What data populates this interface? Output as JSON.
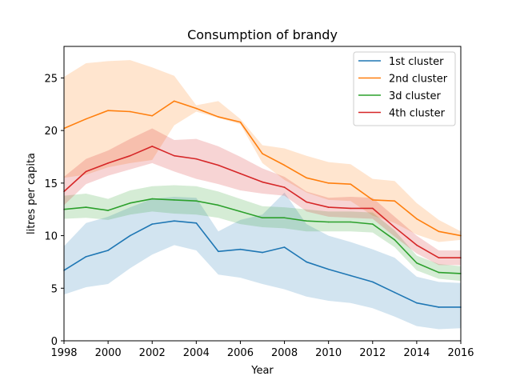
{
  "chart_data": {
    "type": "line",
    "title": "Consumption of brandy",
    "xlabel": "Year",
    "ylabel": "litres per capita",
    "xlim": [
      1998,
      2016
    ],
    "ylim": [
      0,
      28
    ],
    "x_ticks": [
      1998,
      2000,
      2002,
      2004,
      2006,
      2008,
      2010,
      2012,
      2014,
      2016
    ],
    "y_ticks": [
      0,
      5,
      10,
      15,
      20,
      25
    ],
    "legend_position": "top-right",
    "grid": false,
    "x": [
      1998,
      1999,
      2000,
      2001,
      2002,
      2003,
      2004,
      2005,
      2006,
      2007,
      2008,
      2009,
      2010,
      2011,
      2012,
      2013,
      2014,
      2015,
      2016
    ],
    "series": [
      {
        "name": "1st cluster",
        "color": "#1f77b4",
        "values": [
          6.7,
          8.0,
          8.6,
          10.0,
          11.1,
          11.4,
          11.2,
          8.5,
          8.7,
          8.4,
          8.9,
          7.5,
          6.8,
          6.2,
          5.6,
          4.6,
          3.6,
          3.2,
          3.2
        ],
        "lower": [
          4.4,
          5.1,
          5.4,
          6.9,
          8.2,
          9.1,
          8.6,
          6.3,
          6.0,
          5.4,
          4.9,
          4.2,
          3.8,
          3.6,
          3.1,
          2.3,
          1.4,
          1.1,
          1.2
        ],
        "upper": [
          9.0,
          11.2,
          11.8,
          12.7,
          13.5,
          13.7,
          13.6,
          10.4,
          11.5,
          12.0,
          14.1,
          11.1,
          10.0,
          9.4,
          8.7,
          7.9,
          6.1,
          5.6,
          5.5
        ]
      },
      {
        "name": "2nd cluster",
        "color": "#ff7f0e",
        "values": [
          20.2,
          21.1,
          21.9,
          21.8,
          21.4,
          22.8,
          22.1,
          21.3,
          20.8,
          17.8,
          16.7,
          15.5,
          15.0,
          14.9,
          13.4,
          13.3,
          11.6,
          10.4,
          10.0
        ],
        "lower": [
          15.5,
          15.8,
          16.5,
          16.9,
          17.2,
          20.5,
          21.8,
          21.2,
          20.6,
          16.9,
          15.3,
          14.1,
          13.4,
          13.3,
          11.9,
          11.2,
          10.1,
          9.4,
          9.6
        ],
        "upper": [
          25.1,
          26.4,
          26.6,
          26.7,
          26.0,
          25.2,
          22.4,
          22.8,
          21.1,
          18.6,
          18.3,
          17.6,
          17.0,
          16.8,
          15.4,
          15.2,
          13.1,
          11.5,
          10.4
        ]
      },
      {
        "name": "3d cluster",
        "color": "#2ca02c",
        "values": [
          12.5,
          12.7,
          12.4,
          13.1,
          13.5,
          13.4,
          13.3,
          12.9,
          12.3,
          11.7,
          11.7,
          11.4,
          11.3,
          11.3,
          11.1,
          9.6,
          7.4,
          6.5,
          6.4
        ],
        "lower": [
          11.6,
          11.7,
          11.5,
          12.0,
          12.3,
          12.1,
          12.0,
          11.7,
          11.1,
          10.8,
          10.7,
          10.4,
          10.4,
          10.4,
          10.3,
          8.9,
          6.7,
          5.9,
          5.7
        ],
        "upper": [
          13.8,
          14.0,
          13.5,
          14.3,
          14.7,
          14.8,
          14.7,
          14.2,
          13.5,
          12.8,
          12.7,
          12.5,
          12.3,
          12.3,
          12.2,
          10.5,
          8.1,
          7.3,
          7.1
        ]
      },
      {
        "name": "4th cluster",
        "color": "#d62728",
        "values": [
          14.2,
          16.1,
          16.9,
          17.6,
          18.5,
          17.6,
          17.3,
          16.7,
          15.9,
          15.1,
          14.6,
          13.2,
          12.7,
          12.6,
          12.6,
          10.8,
          9.1,
          7.9,
          7.9
        ],
        "lower": [
          12.9,
          14.9,
          15.7,
          16.3,
          16.9,
          16.1,
          15.4,
          14.9,
          14.3,
          14.0,
          13.8,
          12.3,
          11.8,
          11.7,
          11.6,
          9.9,
          8.3,
          7.2,
          7.2
        ],
        "upper": [
          15.6,
          17.3,
          18.1,
          19.2,
          20.2,
          19.1,
          19.2,
          18.5,
          17.5,
          16.4,
          15.6,
          14.2,
          13.6,
          13.7,
          13.6,
          11.8,
          10.0,
          8.6,
          8.6
        ]
      }
    ]
  }
}
